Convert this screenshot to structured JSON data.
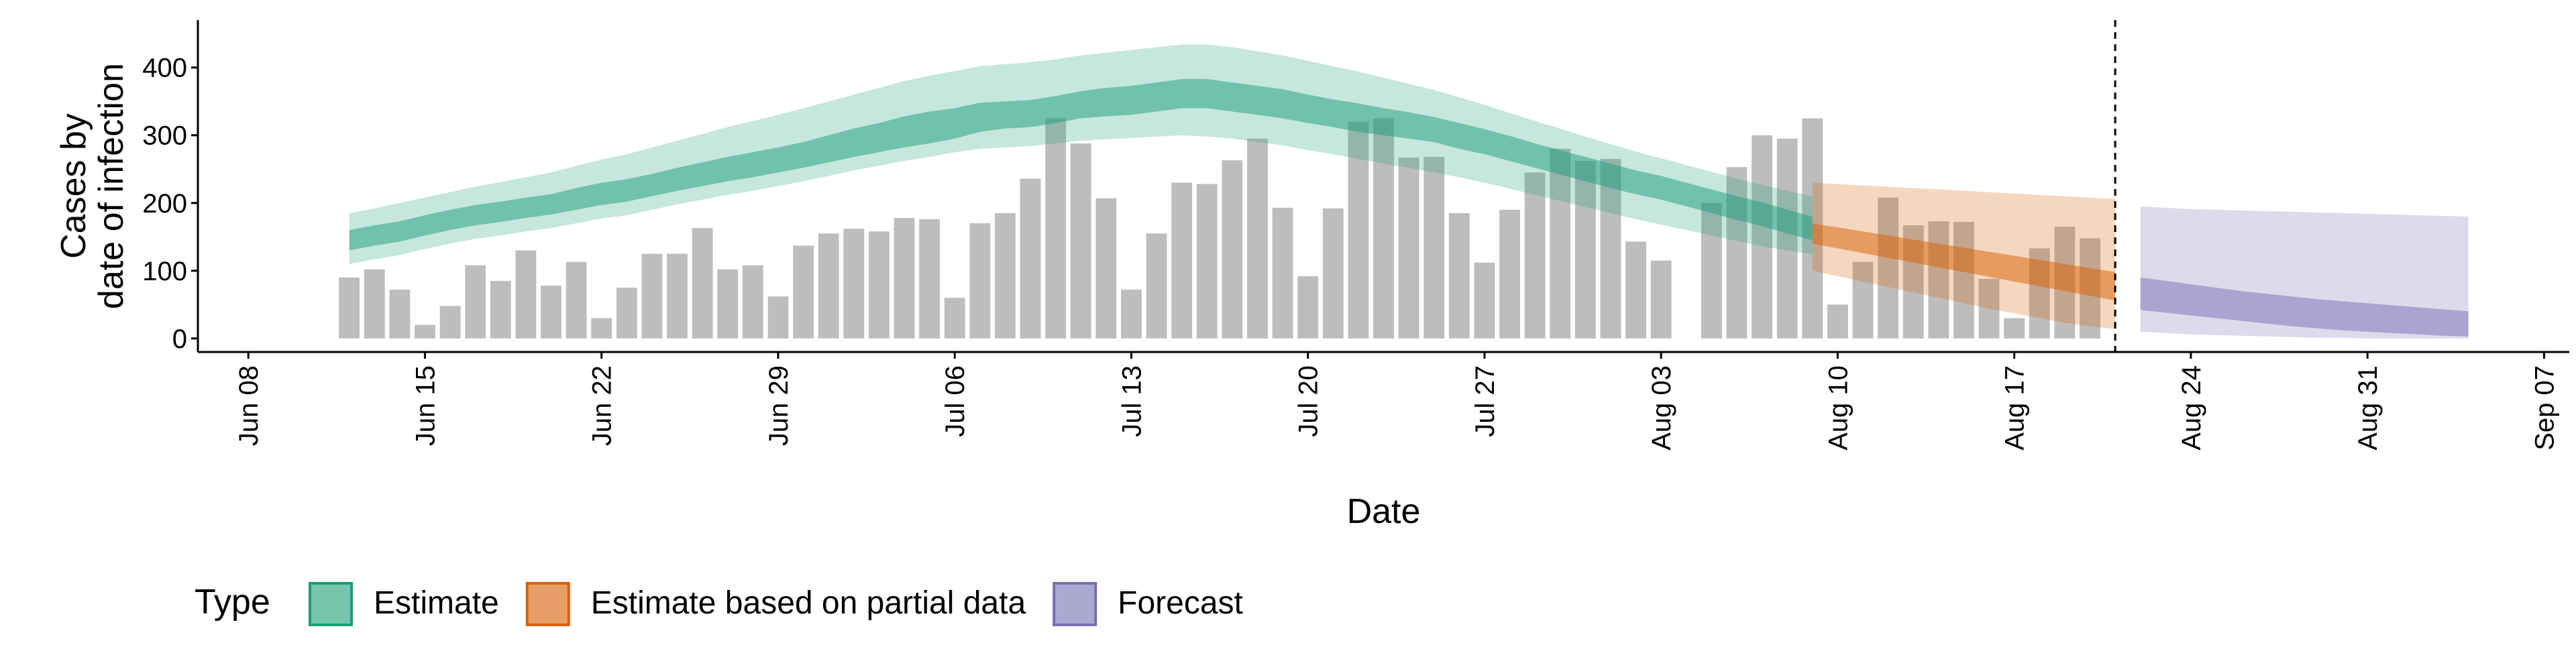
{
  "chart_data": {
    "type": "bar",
    "xlabel": "Date",
    "ylabel_lines": [
      "Cases by",
      "date of infection"
    ],
    "yticks": [
      0,
      100,
      200,
      300,
      400
    ],
    "ylim": [
      -20,
      470
    ],
    "xlim": [
      "2020-06-06",
      "2020-09-08"
    ],
    "xticks": [
      {
        "date": "2020-06-08",
        "label": "Jun 08"
      },
      {
        "date": "2020-06-15",
        "label": "Jun 15"
      },
      {
        "date": "2020-06-22",
        "label": "Jun 22"
      },
      {
        "date": "2020-06-29",
        "label": "Jun 29"
      },
      {
        "date": "2020-07-06",
        "label": "Jul 06"
      },
      {
        "date": "2020-07-13",
        "label": "Jul 13"
      },
      {
        "date": "2020-07-20",
        "label": "Jul 20"
      },
      {
        "date": "2020-07-27",
        "label": "Jul 27"
      },
      {
        "date": "2020-08-03",
        "label": "Aug 03"
      },
      {
        "date": "2020-08-10",
        "label": "Aug 10"
      },
      {
        "date": "2020-08-17",
        "label": "Aug 17"
      },
      {
        "date": "2020-08-24",
        "label": "Aug 24"
      },
      {
        "date": "2020-08-31",
        "label": "Aug 31"
      },
      {
        "date": "2020-09-07",
        "label": "Sep 07"
      }
    ],
    "vline_date": "2020-08-21",
    "legend": {
      "title": "Type",
      "position": "bottom",
      "items": [
        {
          "label": "Estimate",
          "fill": "#1b9e77",
          "stroke": "#1b9e77"
        },
        {
          "label": "Estimate based on partial data",
          "fill": "#d95f02",
          "stroke": "#d95f02"
        },
        {
          "label": "Forecast",
          "fill": "#7570b3",
          "stroke": "#7570b3"
        }
      ]
    },
    "colors": {
      "bars": "#bdbdbd",
      "estimate": "#1b9e77",
      "partial": "#d95f02",
      "forecast": "#7570b3",
      "axis": "#000000"
    },
    "bars": {
      "start_date": "2020-06-12",
      "values": [
        90,
        102,
        72,
        20,
        48,
        108,
        85,
        130,
        78,
        113,
        30,
        75,
        125,
        125,
        163,
        102,
        108,
        62,
        137,
        155,
        162,
        158,
        178,
        176,
        60,
        170,
        185,
        236,
        325,
        288,
        207,
        72,
        155,
        230,
        228,
        263,
        295,
        193,
        92,
        192,
        320,
        325,
        267,
        268,
        185,
        112,
        190,
        245,
        280,
        262,
        265,
        143,
        115,
        null,
        200,
        253,
        300,
        295,
        325,
        50,
        113,
        208,
        167,
        173,
        172,
        88,
        30,
        133,
        165,
        148
      ]
    },
    "series": [
      {
        "name": "Estimate",
        "start_date": "2020-06-12",
        "inner_lo": [
          130,
          137,
          143,
          152,
          160,
          167,
          172,
          178,
          183,
          190,
          197,
          202,
          210,
          218,
          225,
          232,
          238,
          245,
          252,
          260,
          268,
          275,
          282,
          288,
          295,
          305,
          310,
          312,
          318,
          325,
          328,
          330,
          335,
          340,
          340,
          335,
          330,
          325,
          318,
          312,
          305,
          300,
          295,
          290,
          280,
          272,
          262,
          252,
          242,
          232,
          222,
          213,
          205,
          195,
          185,
          175,
          166,
          155,
          145
        ],
        "inner_hi": [
          160,
          167,
          173,
          182,
          190,
          197,
          202,
          208,
          213,
          222,
          230,
          235,
          243,
          252,
          260,
          268,
          275,
          282,
          290,
          300,
          310,
          318,
          328,
          335,
          340,
          348,
          350,
          352,
          358,
          365,
          370,
          373,
          378,
          383,
          383,
          378,
          373,
          368,
          360,
          353,
          347,
          340,
          334,
          327,
          318,
          309,
          299,
          288,
          278,
          268,
          258,
          248,
          240,
          230,
          220,
          210,
          201,
          190,
          180
        ],
        "outer_lo": [
          110,
          117,
          123,
          132,
          140,
          147,
          152,
          158,
          163,
          170,
          177,
          182,
          190,
          198,
          205,
          212,
          218,
          225,
          232,
          240,
          248,
          255,
          262,
          268,
          275,
          280,
          282,
          284,
          288,
          292,
          294,
          296,
          298,
          300,
          298,
          295,
          290,
          285,
          278,
          272,
          265,
          258,
          252,
          245,
          238,
          230,
          221,
          212,
          203,
          194,
          185,
          176,
          168,
          160,
          152,
          144,
          136,
          130,
          124
        ],
        "outer_hi": [
          185,
          192,
          200,
          208,
          216,
          224,
          231,
          238,
          245,
          255,
          264,
          272,
          282,
          292,
          302,
          312,
          321,
          330,
          340,
          350,
          360,
          370,
          380,
          388,
          395,
          402,
          405,
          408,
          412,
          418,
          422,
          426,
          430,
          434,
          434,
          430,
          424,
          418,
          410,
          402,
          394,
          385,
          376,
          367,
          356,
          345,
          333,
          321,
          310,
          298,
          287,
          276,
          266,
          256,
          246,
          236,
          227,
          218,
          210
        ]
      },
      {
        "name": "Estimate based on partial data",
        "start_date": "2020-08-09",
        "inner_lo": [
          140,
          133,
          126,
          119,
          112,
          105,
          98,
          91,
          84,
          77,
          70,
          63,
          56
        ],
        "inner_hi": [
          170,
          164,
          158,
          152,
          146,
          140,
          134,
          128,
          122,
          116,
          110,
          104,
          98
        ],
        "outer_lo": [
          100,
          92,
          84,
          76,
          68,
          60,
          52,
          44,
          37,
          30,
          23,
          18,
          14
        ],
        "outer_hi": [
          230,
          228,
          226,
          224,
          222,
          220,
          218,
          216,
          214,
          212,
          210,
          208,
          206
        ]
      },
      {
        "name": "Forecast",
        "start_date": "2020-08-22",
        "inner_lo": [
          42,
          38,
          34,
          30,
          26,
          22,
          18,
          15,
          12,
          10,
          8,
          6,
          4,
          3
        ],
        "inner_hi": [
          90,
          85,
          80,
          75,
          70,
          66,
          62,
          58,
          55,
          52,
          49,
          46,
          43,
          40
        ],
        "outer_lo": [
          10,
          8,
          6,
          5,
          4,
          3,
          2,
          1,
          1,
          0,
          0,
          0,
          0,
          0
        ],
        "outer_hi": [
          195,
          193,
          191,
          190,
          189,
          188,
          187,
          186,
          185,
          184,
          183,
          182,
          181,
          180
        ]
      }
    ]
  }
}
